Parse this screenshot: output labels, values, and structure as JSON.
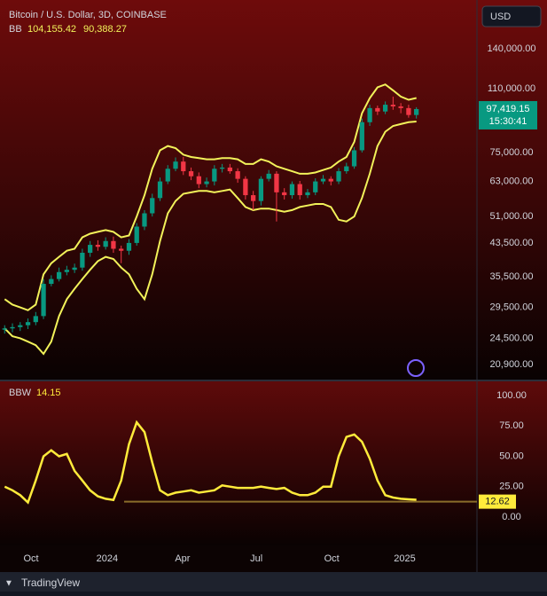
{
  "currency_button": "USD",
  "footer": "TradingView",
  "chart_data": [
    {
      "type": "candlestick",
      "title": "Bitcoin / U.S. Dollar, 3D, COINBASE",
      "indicator": "BB",
      "log_scale": true,
      "legend_values": [
        {
          "value": 104155.42,
          "label": "104,155.42"
        },
        {
          "value": 90388.27,
          "label": "90,388.27"
        }
      ],
      "last_price": {
        "value": 97419.15,
        "label": "97,419.15"
      },
      "countdown": "15:30:41",
      "up_color": "#089981",
      "down_color": "#f23645",
      "band_color": "#f2f25a",
      "xlim": [
        -0.6,
        60.8
      ],
      "xticks": [
        {
          "value": 3.4,
          "label": "Oct"
        },
        {
          "value": 13.2,
          "label": "2024"
        },
        {
          "value": 22.9,
          "label": "Apr"
        },
        {
          "value": 32.4,
          "label": "Jul"
        },
        {
          "value": 42.1,
          "label": "Oct"
        },
        {
          "value": 51.5,
          "label": "2025"
        }
      ],
      "ylim": [
        19100,
        187900
      ],
      "yticks": [
        {
          "value": 140000,
          "label": "140,000.00"
        },
        {
          "value": 110000,
          "label": "110,000.00"
        },
        {
          "value": 75000,
          "label": "75,000.00"
        },
        {
          "value": 63000,
          "label": "63,000.00"
        },
        {
          "value": 51000,
          "label": "51,000.00"
        },
        {
          "value": 43500,
          "label": "43,500.00"
        },
        {
          "value": 35500,
          "label": "35,500.00"
        },
        {
          "value": 29500,
          "label": "29,500.00"
        },
        {
          "value": 24500,
          "label": "24,500.00"
        },
        {
          "value": 20900,
          "label": "20,900.00"
        }
      ],
      "open": [
        25800,
        26000,
        26200,
        26500,
        27000,
        28000,
        34000,
        35000,
        36500,
        37000,
        37500,
        41000,
        43000,
        42500,
        44000,
        42000,
        41500,
        43500,
        48000,
        52000,
        57000,
        63000,
        68000,
        71000,
        67000,
        65000,
        62000,
        63000,
        68000,
        68500,
        67000,
        64000,
        58000,
        56000,
        64000,
        66000,
        59000,
        58000,
        62000,
        58000,
        59000,
        63000,
        64000,
        63000,
        67000,
        69000,
        76000,
        90000,
        98000,
        96000,
        100000,
        99000,
        98000,
        94000
      ],
      "high": [
        26500,
        26800,
        27000,
        27600,
        28700,
        35000,
        35800,
        37500,
        37900,
        38400,
        42000,
        44000,
        44200,
        45000,
        45200,
        42800,
        44500,
        49000,
        53000,
        58500,
        64500,
        69500,
        72800,
        73000,
        68500,
        66500,
        64500,
        69500,
        70000,
        70000,
        68200,
        65000,
        59500,
        65000,
        67500,
        67000,
        60500,
        63000,
        63200,
        60200,
        64200,
        65500,
        65000,
        68300,
        70500,
        77500,
        92000,
        100000,
        99500,
        102000,
        105000,
        101000,
        100000,
        98500
      ],
      "low": [
        25200,
        25400,
        25600,
        25900,
        26500,
        27500,
        33500,
        34500,
        35800,
        36300,
        36800,
        40000,
        41500,
        41800,
        41000,
        38500,
        40500,
        42800,
        47000,
        51000,
        56000,
        62000,
        67000,
        65500,
        63500,
        60500,
        60800,
        61500,
        66500,
        66000,
        62500,
        56500,
        53000,
        54500,
        63000,
        49500,
        56500,
        56800,
        56500,
        57000,
        58000,
        62000,
        61500,
        62000,
        66000,
        68000,
        75000,
        88000,
        94000,
        94500,
        97000,
        95000,
        92500,
        92000
      ],
      "close": [
        26000,
        26200,
        26500,
        27000,
        28000,
        34000,
        35000,
        36500,
        37000,
        37500,
        41000,
        43000,
        42500,
        44000,
        42000,
        41500,
        43500,
        48000,
        52000,
        57000,
        63000,
        68000,
        71000,
        67000,
        65000,
        62000,
        63000,
        68000,
        68500,
        67000,
        64000,
        58000,
        56000,
        64000,
        66000,
        59000,
        58000,
        62000,
        58000,
        59000,
        63000,
        64000,
        63000,
        67000,
        69000,
        76000,
        90000,
        98000,
        96000,
        100000,
        99000,
        98000,
        94000,
        97419.15
      ],
      "series": [
        {
          "values": [
            31000,
            30000,
            29500,
            29000,
            30000,
            36000,
            38500,
            40000,
            41500,
            42000,
            45000,
            46000,
            46500,
            47000,
            46500,
            45000,
            45500,
            51000,
            58000,
            68000,
            76000,
            78000,
            77000,
            74000,
            73000,
            72500,
            72000,
            72000,
            72500,
            72500,
            72000,
            70000,
            70000,
            72000,
            71000,
            69000,
            68000,
            67000,
            66000,
            66000,
            66500,
            67500,
            68500,
            71000,
            73000,
            80000,
            95000,
            104000,
            111000,
            113000,
            109000,
            105000,
            103000,
            104155.42
          ]
        },
        {
          "values": [
            26000,
            24800,
            24500,
            24000,
            23500,
            22300,
            24000,
            28000,
            31000,
            33000,
            35000,
            37000,
            39000,
            40000,
            39500,
            37500,
            36000,
            33000,
            31000,
            36000,
            44000,
            52000,
            56000,
            58500,
            59000,
            59500,
            59500,
            59000,
            59500,
            60000,
            57000,
            54000,
            53000,
            53500,
            53500,
            53000,
            52500,
            53000,
            54000,
            54500,
            55000,
            55000,
            54000,
            50000,
            49500,
            51000,
            57000,
            66000,
            78000,
            85000,
            88000,
            89000,
            90000,
            90388.27
          ]
        }
      ]
    },
    {
      "type": "line",
      "title": "BBW",
      "legend_value": 14.15,
      "color": "#ffeb3b",
      "ylim": [
        -23.5,
        111.8
      ],
      "yticks": [
        {
          "value": 100,
          "label": "100.00"
        },
        {
          "value": 75,
          "label": "75.00"
        },
        {
          "value": 50,
          "label": "50.00"
        },
        {
          "value": 25,
          "label": "25.00"
        },
        {
          "value": 0,
          "label": "0.00"
        }
      ],
      "reference": {
        "value": 12.62,
        "label": "12.62",
        "color": "#8a6d2a"
      },
      "values": [
        25,
        22,
        18,
        12,
        30,
        50,
        55,
        50,
        52,
        38,
        30,
        22,
        17,
        15,
        14,
        30,
        60,
        78,
        70,
        45,
        22,
        18,
        20,
        21,
        22,
        20,
        21,
        22,
        26,
        25,
        24,
        24,
        24,
        25,
        24,
        23,
        24,
        20,
        18,
        18,
        20,
        25,
        25,
        50,
        66,
        68,
        62,
        48,
        30,
        18,
        16,
        15,
        14.5,
        14.15
      ]
    }
  ]
}
